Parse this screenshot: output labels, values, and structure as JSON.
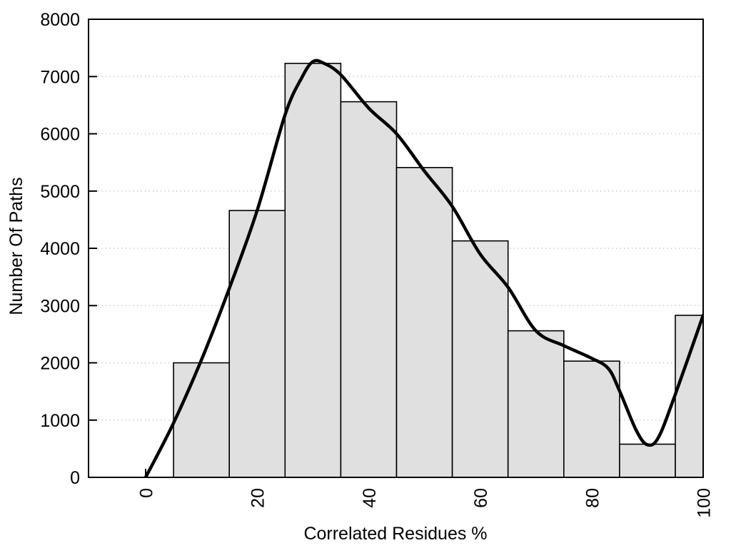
{
  "chart_data": {
    "type": "histogram_with_smooth_curve",
    "title": "",
    "xlabel": "Correlated Residues %",
    "ylabel": "Number Of Paths",
    "xlim": [
      -10.25,
      100
    ],
    "ylim": [
      0,
      8000
    ],
    "x_ticks": [
      0,
      20,
      40,
      60,
      80,
      100
    ],
    "y_ticks": [
      0,
      1000,
      2000,
      3000,
      4000,
      5000,
      6000,
      7000,
      8000
    ],
    "x_tick_labels_rotated": true,
    "grid": {
      "style": "dotted",
      "horizontal_at": [
        1000,
        2000,
        3000,
        4000,
        5000,
        6000,
        7000
      ]
    },
    "bin_width": 10,
    "bars": [
      {
        "x0": 5,
        "x1": 15,
        "value": 2000
      },
      {
        "x0": 15,
        "x1": 25,
        "value": 4660
      },
      {
        "x0": 25,
        "x1": 35,
        "value": 7230
      },
      {
        "x0": 35,
        "x1": 45,
        "value": 6560
      },
      {
        "x0": 45,
        "x1": 55,
        "value": 5410
      },
      {
        "x0": 55,
        "x1": 65,
        "value": 4130
      },
      {
        "x0": 65,
        "x1": 75,
        "value": 2560
      },
      {
        "x0": 75,
        "x1": 85,
        "value": 2030
      },
      {
        "x0": 85,
        "x1": 95,
        "value": 580
      },
      {
        "x0": 95,
        "x1": 100,
        "value": 2830
      }
    ],
    "curve": {
      "name": "smoothed-frequency-curve",
      "points": [
        [
          0,
          0
        ],
        [
          5,
          950
        ],
        [
          10,
          2050
        ],
        [
          15,
          3300
        ],
        [
          20,
          4660
        ],
        [
          25,
          6330
        ],
        [
          28,
          6980
        ],
        [
          30,
          7260
        ],
        [
          32,
          7230
        ],
        [
          35,
          7030
        ],
        [
          40,
          6450
        ],
        [
          45,
          6000
        ],
        [
          50,
          5350
        ],
        [
          55,
          4730
        ],
        [
          60,
          3900
        ],
        [
          65,
          3320
        ],
        [
          70,
          2560
        ],
        [
          75,
          2300
        ],
        [
          80,
          2080
        ],
        [
          83,
          1900
        ],
        [
          85,
          1510
        ],
        [
          88,
          820
        ],
        [
          90,
          570
        ],
        [
          92,
          700
        ],
        [
          95,
          1450
        ],
        [
          100,
          2830
        ]
      ]
    },
    "colors": {
      "background": "#ffffff",
      "bar_fill": "#e0e0e0",
      "bar_border": "#000000",
      "curve": "#000000",
      "axis": "#000000",
      "grid": "#c3c3c3",
      "text": "#000000"
    }
  }
}
